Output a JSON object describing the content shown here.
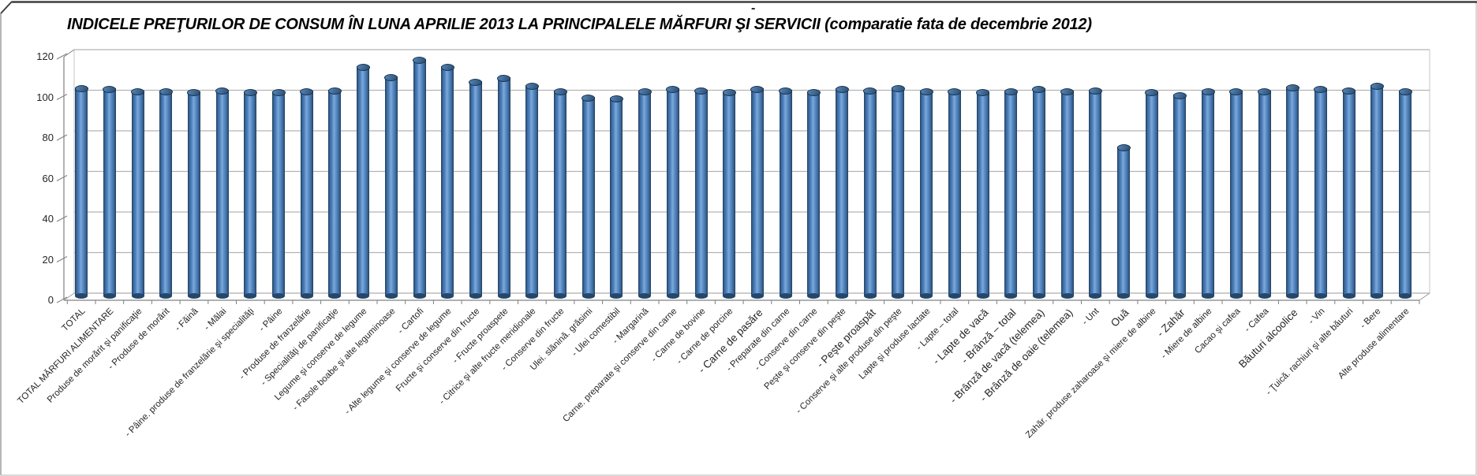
{
  "page": {
    "stray_dash": "-"
  },
  "header": {
    "title": "INDICELE PREŢURILOR DE CONSUM ÎN LUNA APRILIE 2013 LA PRINCIPALELE MĂRFURI ŞI SERVICII (comparatie fata de decembrie 2012)"
  },
  "chart_data": {
    "type": "bar",
    "style": "3d-cylinder",
    "title": "INDICELE PREŢURILOR DE CONSUM ÎN LUNA APRILIE 2013 LA PRINCIPALELE MĂRFURI ŞI SERVICII (comparatie fata de decembrie 2012)",
    "xlabel": "",
    "ylabel": "",
    "ylim": [
      0,
      120
    ],
    "yticks": [
      0,
      20,
      40,
      60,
      80,
      100,
      120
    ],
    "grid": true,
    "legend": false,
    "bar_color": "#4f81bd",
    "bar_edge_color": "#1e3c5c",
    "gridline_color": "#b3b3b3",
    "axis_color": "#808080",
    "label_color": "#262626",
    "categories": [
      "TOTAL",
      "TOTAL MĂRFURI ALIMENTARE",
      "Produse de morărit şi panificaţie",
      "- Produse de morărit",
      "- Făină",
      "- Mălai",
      "- Pâine. produse de franzelărie şi specialităţi",
      "- Pâine",
      "- Produse de franzelărie",
      "- Specialităţi de panificaţie",
      "Legume şi conserve de legume",
      "- Fasole boabe şi alte leguminoase",
      "- Cartofi",
      "- Alte legume şi conserve de legume",
      "Fructe şi conserve din fructe",
      "- Fructe proaspete",
      "- Citrice şi alte fructe meridionale",
      "- Conserve din fructe",
      "Ulei. slănină. grăsimi",
      "- Ulei comestibil",
      "- Margarină",
      "Carne. preparate şi conserve din carne",
      "- Carne de bovine",
      "- Carne de porcine",
      "- Carne de pasăre",
      "- Preparate din carne",
      "- Conserve din carne",
      "Peşte şi conserve din peşte",
      "- Peşte proaspăt",
      "- Conserve şi alte produse din peşte",
      "Lapte şi produse lactate",
      "- Lapte – total",
      "- Lapte de vacă",
      "- Brânză – total",
      "- Brânză de vacă (telemea)",
      "- Brânză de oaie (telemea)",
      "- Unt",
      "Ouă",
      "Zahăr. produse zaharoase şi miere de albine",
      "- Zahăr",
      "- Miere de albine",
      "Cacao şi cafea",
      "- Cafea",
      "Băuturi alcoolice",
      "- Vin",
      "- Ţuică. rachiuri şi alte băuturi",
      "- Bere",
      "Alte produse alimentare"
    ],
    "values": [
      102.5,
      102,
      101,
      101,
      100.5,
      101.5,
      100.5,
      100.5,
      101,
      101.5,
      113,
      108,
      116.5,
      113,
      105.5,
      107.5,
      103.5,
      101,
      98,
      97.5,
      101,
      102,
      101.5,
      100.5,
      102,
      101.5,
      100.5,
      102,
      101.5,
      102.5,
      101,
      101,
      100.5,
      101,
      102,
      101,
      101.5,
      73.5,
      100.5,
      99,
      101,
      101,
      101,
      103,
      102,
      101.5,
      103.5,
      101
    ],
    "large_label_indices": [
      24,
      28,
      32,
      33,
      34,
      35,
      37,
      39,
      43
    ]
  }
}
